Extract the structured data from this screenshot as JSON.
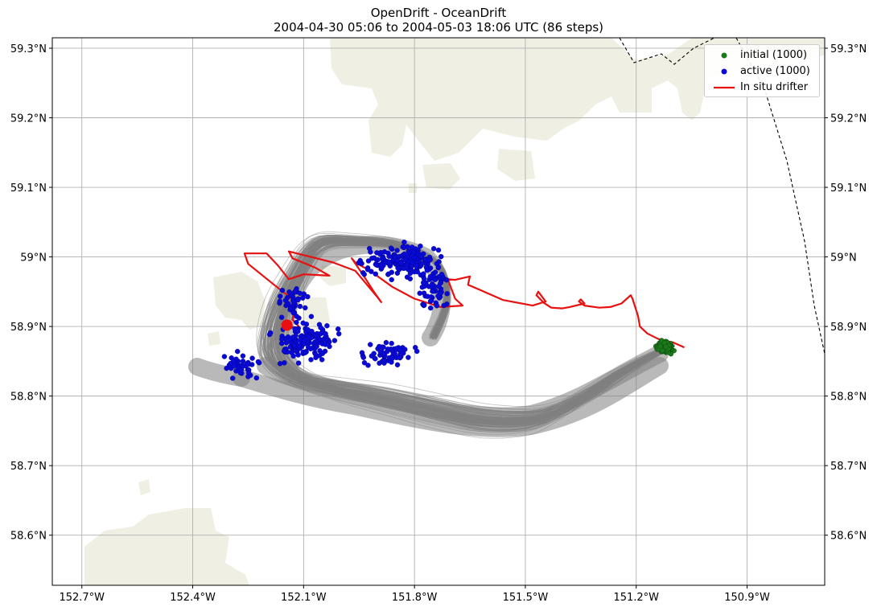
{
  "title": {
    "line1": "OpenDrift - OceanDrift",
    "line2": "2004-04-30 05:06 to 2004-05-03 18:06 UTC (86 steps)"
  },
  "map": {
    "lon_range": [
      -152.78,
      -150.69
    ],
    "lat_range": [
      58.528,
      59.315
    ],
    "lon_ticks": [
      -152.7,
      -152.4,
      -152.1,
      -151.8,
      -151.5,
      -151.2,
      -150.9
    ],
    "lon_tick_labels": [
      "152.7°W",
      "152.4°W",
      "152.1°W",
      "151.8°W",
      "151.5°W",
      "151.2°W",
      "150.9°W"
    ],
    "lat_ticks": [
      58.6,
      58.7,
      58.8,
      58.9,
      59.0,
      59.1,
      59.2,
      59.3
    ],
    "lat_tick_labels": [
      "58.6°N",
      "58.7°N",
      "58.8°N",
      "58.9°N",
      "59°N",
      "59.1°N",
      "59.2°N",
      "59.3°N"
    ],
    "gridlines": true,
    "land_color": "#efefe3",
    "trajectory_color": "#808080",
    "initial_color": "#1a7a1a",
    "active_color": "#0a0ad8",
    "drifter_color": "#e81010",
    "end_marker_color": "#e81010",
    "boundary_style": "dashed"
  },
  "legend": {
    "placement": "top-right",
    "items": [
      {
        "label": "initial (1000)",
        "symbol": "green-dot"
      },
      {
        "label": "active (1000)",
        "symbol": "blue-dot"
      },
      {
        "label": "In situ drifter",
        "symbol": "red-line"
      }
    ]
  },
  "drifter_track": [
    [
      -151.07,
      58.87
    ],
    [
      -151.1,
      58.877
    ],
    [
      -151.14,
      58.882
    ],
    [
      -151.17,
      58.89
    ],
    [
      -151.19,
      58.9
    ],
    [
      -151.195,
      58.915
    ],
    [
      -151.21,
      58.94
    ],
    [
      -151.215,
      58.945
    ],
    [
      -151.24,
      58.933
    ],
    [
      -151.27,
      58.928
    ],
    [
      -151.3,
      58.927
    ],
    [
      -151.34,
      58.93
    ],
    [
      -151.355,
      58.936
    ],
    [
      -151.35,
      58.939
    ],
    [
      -151.34,
      58.933
    ],
    [
      -151.38,
      58.928
    ],
    [
      -151.4,
      58.926
    ],
    [
      -151.43,
      58.927
    ],
    [
      -151.45,
      58.934
    ],
    [
      -151.47,
      58.945
    ],
    [
      -151.465,
      58.95
    ],
    [
      -151.445,
      58.936
    ],
    [
      -151.48,
      58.93
    ],
    [
      -151.56,
      58.938
    ],
    [
      -151.62,
      58.952
    ],
    [
      -151.655,
      58.96
    ],
    [
      -151.65,
      58.972
    ],
    [
      -151.69,
      58.967
    ],
    [
      -151.71,
      58.968
    ],
    [
      -151.69,
      58.94
    ],
    [
      -151.67,
      58.93
    ],
    [
      -151.73,
      58.928
    ],
    [
      -151.8,
      58.94
    ],
    [
      -151.86,
      58.957
    ],
    [
      -151.92,
      58.98
    ],
    [
      -151.96,
      58.992
    ],
    [
      -151.97,
      58.998
    ],
    [
      -151.94,
      58.975
    ],
    [
      -151.91,
      58.95
    ],
    [
      -151.89,
      58.935
    ],
    [
      -151.9,
      58.942
    ],
    [
      -151.96,
      58.98
    ],
    [
      -152.02,
      58.992
    ],
    [
      -152.08,
      59.0
    ],
    [
      -152.14,
      59.008
    ],
    [
      -152.13,
      58.998
    ],
    [
      -152.07,
      58.985
    ],
    [
      -152.03,
      58.973
    ],
    [
      -152.1,
      58.975
    ],
    [
      -152.14,
      58.968
    ],
    [
      -152.17,
      58.988
    ],
    [
      -152.2,
      59.005
    ],
    [
      -152.26,
      59.005
    ],
    [
      -152.25,
      58.99
    ],
    [
      -152.18,
      58.96
    ],
    [
      -152.12,
      58.935
    ],
    [
      -152.13,
      58.91
    ],
    [
      -152.11,
      58.898
    ],
    [
      -152.145,
      58.9
    ]
  ],
  "end_marker": [
    -152.145,
    58.902
  ]
}
